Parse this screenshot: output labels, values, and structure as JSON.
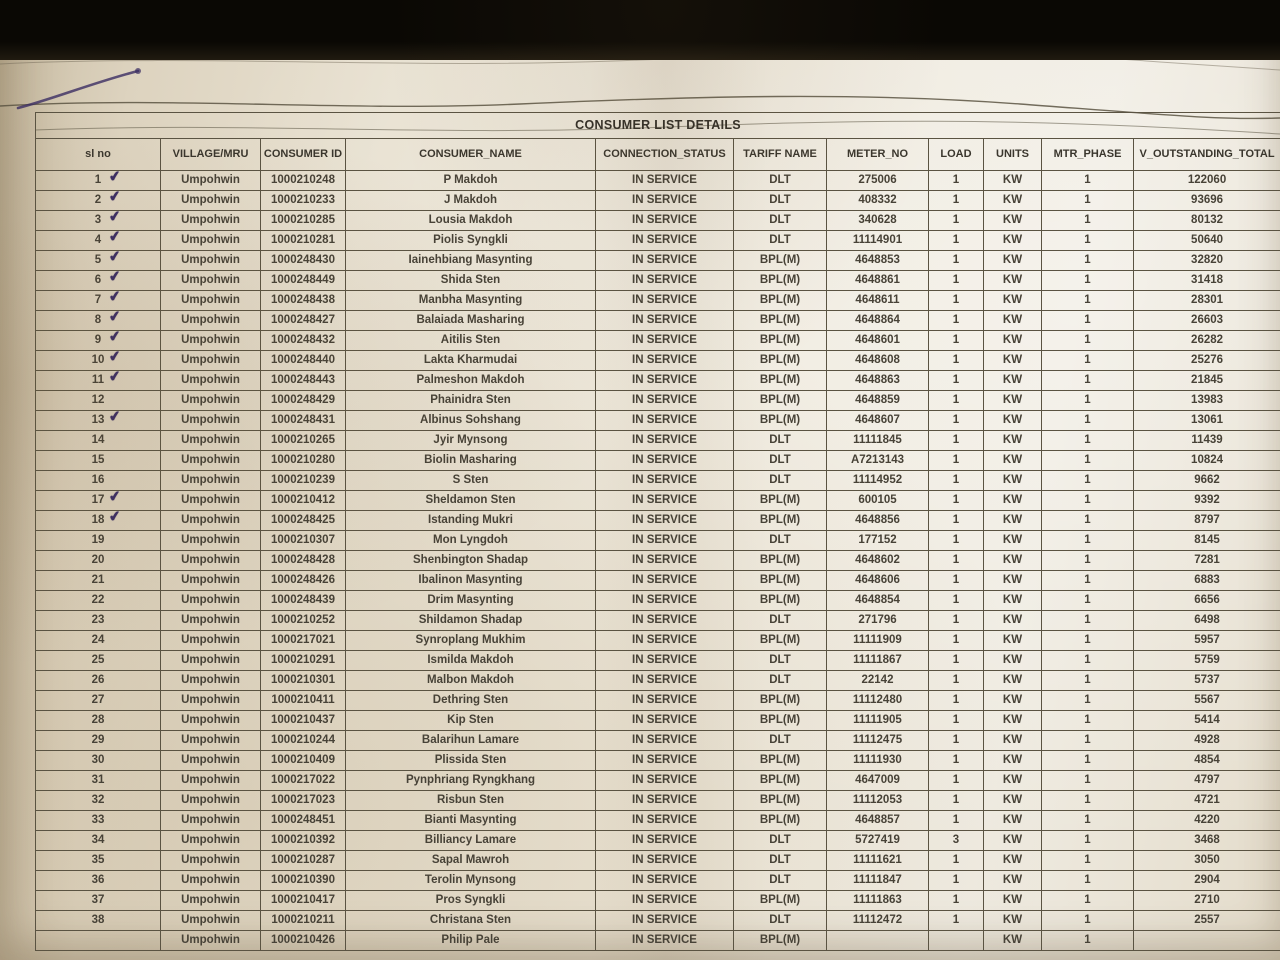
{
  "document": {
    "title": "CONSUMER LIST DETAILS"
  },
  "pen": {
    "color": "#3b2d63",
    "check_glyph": "✔"
  },
  "table": {
    "columns": [
      {
        "key": "sl",
        "label": "sl no"
      },
      {
        "key": "village",
        "label": "VILLAGE/MRU"
      },
      {
        "key": "consumer_id",
        "label": "CONSUMER ID"
      },
      {
        "key": "name",
        "label": "CONSUMER_NAME"
      },
      {
        "key": "status",
        "label": "CONNECTION_STATUS"
      },
      {
        "key": "tariff",
        "label": "TARIFF NAME"
      },
      {
        "key": "meter",
        "label": "METER_NO"
      },
      {
        "key": "load",
        "label": "LOAD"
      },
      {
        "key": "units",
        "label": "UNITS"
      },
      {
        "key": "phase",
        "label": "MTR_PHASE"
      },
      {
        "key": "outstanding",
        "label": "V_OUTSTANDING_TOTAL"
      }
    ],
    "rows": [
      {
        "sl": "1",
        "village": "Umpohwin",
        "consumer_id": "1000210248",
        "name": "P Makdoh",
        "status": "IN SERVICE",
        "tariff": "DLT",
        "meter": "275006",
        "load": "1",
        "units": "KW",
        "phase": "1",
        "outstanding": "122060",
        "checked": true
      },
      {
        "sl": "2",
        "village": "Umpohwin",
        "consumer_id": "1000210233",
        "name": "J Makdoh",
        "status": "IN SERVICE",
        "tariff": "DLT",
        "meter": "408332",
        "load": "1",
        "units": "KW",
        "phase": "1",
        "outstanding": "93696",
        "checked": true
      },
      {
        "sl": "3",
        "village": "Umpohwin",
        "consumer_id": "1000210285",
        "name": "Lousia Makdoh",
        "status": "IN SERVICE",
        "tariff": "DLT",
        "meter": "340628",
        "load": "1",
        "units": "KW",
        "phase": "1",
        "outstanding": "80132",
        "checked": true
      },
      {
        "sl": "4",
        "village": "Umpohwin",
        "consumer_id": "1000210281",
        "name": "Piolis Syngkli",
        "status": "IN SERVICE",
        "tariff": "DLT",
        "meter": "11114901",
        "load": "1",
        "units": "KW",
        "phase": "1",
        "outstanding": "50640",
        "checked": true
      },
      {
        "sl": "5",
        "village": "Umpohwin",
        "consumer_id": "1000248430",
        "name": "Iainehbiang Masynting",
        "status": "IN SERVICE",
        "tariff": "BPL(M)",
        "meter": "4648853",
        "load": "1",
        "units": "KW",
        "phase": "1",
        "outstanding": "32820",
        "checked": true
      },
      {
        "sl": "6",
        "village": "Umpohwin",
        "consumer_id": "1000248449",
        "name": "Shida Sten",
        "status": "IN SERVICE",
        "tariff": "BPL(M)",
        "meter": "4648861",
        "load": "1",
        "units": "KW",
        "phase": "1",
        "outstanding": "31418",
        "checked": true
      },
      {
        "sl": "7",
        "village": "Umpohwin",
        "consumer_id": "1000248438",
        "name": "Manbha Masynting",
        "status": "IN SERVICE",
        "tariff": "BPL(M)",
        "meter": "4648611",
        "load": "1",
        "units": "KW",
        "phase": "1",
        "outstanding": "28301",
        "checked": true
      },
      {
        "sl": "8",
        "village": "Umpohwin",
        "consumer_id": "1000248427",
        "name": "Balaiada Masharing",
        "status": "IN SERVICE",
        "tariff": "BPL(M)",
        "meter": "4648864",
        "load": "1",
        "units": "KW",
        "phase": "1",
        "outstanding": "26603",
        "checked": true
      },
      {
        "sl": "9",
        "village": "Umpohwin",
        "consumer_id": "1000248432",
        "name": "Aitilis Sten",
        "status": "IN SERVICE",
        "tariff": "BPL(M)",
        "meter": "4648601",
        "load": "1",
        "units": "KW",
        "phase": "1",
        "outstanding": "26282",
        "checked": true
      },
      {
        "sl": "10",
        "village": "Umpohwin",
        "consumer_id": "1000248440",
        "name": "Lakta Kharmudai",
        "status": "IN SERVICE",
        "tariff": "BPL(M)",
        "meter": "4648608",
        "load": "1",
        "units": "KW",
        "phase": "1",
        "outstanding": "25276",
        "checked": true
      },
      {
        "sl": "11",
        "village": "Umpohwin",
        "consumer_id": "1000248443",
        "name": "Palmeshon Makdoh",
        "status": "IN SERVICE",
        "tariff": "BPL(M)",
        "meter": "4648863",
        "load": "1",
        "units": "KW",
        "phase": "1",
        "outstanding": "21845",
        "checked": true
      },
      {
        "sl": "12",
        "village": "Umpohwin",
        "consumer_id": "1000248429",
        "name": "Phainidra Sten",
        "status": "IN SERVICE",
        "tariff": "BPL(M)",
        "meter": "4648859",
        "load": "1",
        "units": "KW",
        "phase": "1",
        "outstanding": "13983",
        "checked": false
      },
      {
        "sl": "13",
        "village": "Umpohwin",
        "consumer_id": "1000248431",
        "name": "Albinus Sohshang",
        "status": "IN SERVICE",
        "tariff": "BPL(M)",
        "meter": "4648607",
        "load": "1",
        "units": "KW",
        "phase": "1",
        "outstanding": "13061",
        "checked": true
      },
      {
        "sl": "14",
        "village": "Umpohwin",
        "consumer_id": "1000210265",
        "name": "Jyir Mynsong",
        "status": "IN SERVICE",
        "tariff": "DLT",
        "meter": "11111845",
        "load": "1",
        "units": "KW",
        "phase": "1",
        "outstanding": "11439",
        "checked": false
      },
      {
        "sl": "15",
        "village": "Umpohwin",
        "consumer_id": "1000210280",
        "name": "Biolin Masharing",
        "status": "IN SERVICE",
        "tariff": "DLT",
        "meter": "A7213143",
        "load": "1",
        "units": "KW",
        "phase": "1",
        "outstanding": "10824",
        "checked": false
      },
      {
        "sl": "16",
        "village": "Umpohwin",
        "consumer_id": "1000210239",
        "name": "S Sten",
        "status": "IN SERVICE",
        "tariff": "DLT",
        "meter": "11114952",
        "load": "1",
        "units": "KW",
        "phase": "1",
        "outstanding": "9662",
        "checked": false
      },
      {
        "sl": "17",
        "village": "Umpohwin",
        "consumer_id": "1000210412",
        "name": "Sheldamon Sten",
        "status": "IN SERVICE",
        "tariff": "BPL(M)",
        "meter": "600105",
        "load": "1",
        "units": "KW",
        "phase": "1",
        "outstanding": "9392",
        "checked": true
      },
      {
        "sl": "18",
        "village": "Umpohwin",
        "consumer_id": "1000248425",
        "name": "Istanding Mukri",
        "status": "IN SERVICE",
        "tariff": "BPL(M)",
        "meter": "4648856",
        "load": "1",
        "units": "KW",
        "phase": "1",
        "outstanding": "8797",
        "checked": true
      },
      {
        "sl": "19",
        "village": "Umpohwin",
        "consumer_id": "1000210307",
        "name": "Mon Lyngdoh",
        "status": "IN SERVICE",
        "tariff": "DLT",
        "meter": "177152",
        "load": "1",
        "units": "KW",
        "phase": "1",
        "outstanding": "8145",
        "checked": false
      },
      {
        "sl": "20",
        "village": "Umpohwin",
        "consumer_id": "1000248428",
        "name": "Shenbington Shadap",
        "status": "IN SERVICE",
        "tariff": "BPL(M)",
        "meter": "4648602",
        "load": "1",
        "units": "KW",
        "phase": "1",
        "outstanding": "7281",
        "checked": false
      },
      {
        "sl": "21",
        "village": "Umpohwin",
        "consumer_id": "1000248426",
        "name": "Ibalinon Masynting",
        "status": "IN SERVICE",
        "tariff": "BPL(M)",
        "meter": "4648606",
        "load": "1",
        "units": "KW",
        "phase": "1",
        "outstanding": "6883",
        "checked": false
      },
      {
        "sl": "22",
        "village": "Umpohwin",
        "consumer_id": "1000248439",
        "name": "Drim Masynting",
        "status": "IN SERVICE",
        "tariff": "BPL(M)",
        "meter": "4648854",
        "load": "1",
        "units": "KW",
        "phase": "1",
        "outstanding": "6656",
        "checked": false
      },
      {
        "sl": "23",
        "village": "Umpohwin",
        "consumer_id": "1000210252",
        "name": "Shildamon Shadap",
        "status": "IN SERVICE",
        "tariff": "DLT",
        "meter": "271796",
        "load": "1",
        "units": "KW",
        "phase": "1",
        "outstanding": "6498",
        "checked": false
      },
      {
        "sl": "24",
        "village": "Umpohwin",
        "consumer_id": "1000217021",
        "name": "Synroplang Mukhim",
        "status": "IN SERVICE",
        "tariff": "BPL(M)",
        "meter": "11111909",
        "load": "1",
        "units": "KW",
        "phase": "1",
        "outstanding": "5957",
        "checked": false
      },
      {
        "sl": "25",
        "village": "Umpohwin",
        "consumer_id": "1000210291",
        "name": "Ismilda Makdoh",
        "status": "IN SERVICE",
        "tariff": "DLT",
        "meter": "11111867",
        "load": "1",
        "units": "KW",
        "phase": "1",
        "outstanding": "5759",
        "checked": false
      },
      {
        "sl": "26",
        "village": "Umpohwin",
        "consumer_id": "1000210301",
        "name": "Malbon Makdoh",
        "status": "IN SERVICE",
        "tariff": "DLT",
        "meter": "22142",
        "load": "1",
        "units": "KW",
        "phase": "1",
        "outstanding": "5737",
        "checked": false
      },
      {
        "sl": "27",
        "village": "Umpohwin",
        "consumer_id": "1000210411",
        "name": "Dethring Sten",
        "status": "IN SERVICE",
        "tariff": "BPL(M)",
        "meter": "11112480",
        "load": "1",
        "units": "KW",
        "phase": "1",
        "outstanding": "5567",
        "checked": false
      },
      {
        "sl": "28",
        "village": "Umpohwin",
        "consumer_id": "1000210437",
        "name": "Kip Sten",
        "status": "IN SERVICE",
        "tariff": "BPL(M)",
        "meter": "11111905",
        "load": "1",
        "units": "KW",
        "phase": "1",
        "outstanding": "5414",
        "checked": false
      },
      {
        "sl": "29",
        "village": "Umpohwin",
        "consumer_id": "1000210244",
        "name": "Balarihun Lamare",
        "status": "IN SERVICE",
        "tariff": "DLT",
        "meter": "11112475",
        "load": "1",
        "units": "KW",
        "phase": "1",
        "outstanding": "4928",
        "checked": false
      },
      {
        "sl": "30",
        "village": "Umpohwin",
        "consumer_id": "1000210409",
        "name": "Plissida Sten",
        "status": "IN SERVICE",
        "tariff": "BPL(M)",
        "meter": "11111930",
        "load": "1",
        "units": "KW",
        "phase": "1",
        "outstanding": "4854",
        "checked": false
      },
      {
        "sl": "31",
        "village": "Umpohwin",
        "consumer_id": "1000217022",
        "name": "Pynphriang Ryngkhang",
        "status": "IN SERVICE",
        "tariff": "BPL(M)",
        "meter": "4647009",
        "load": "1",
        "units": "KW",
        "phase": "1",
        "outstanding": "4797",
        "checked": false
      },
      {
        "sl": "32",
        "village": "Umpohwin",
        "consumer_id": "1000217023",
        "name": "Risbun Sten",
        "status": "IN SERVICE",
        "tariff": "BPL(M)",
        "meter": "11112053",
        "load": "1",
        "units": "KW",
        "phase": "1",
        "outstanding": "4721",
        "checked": false
      },
      {
        "sl": "33",
        "village": "Umpohwin",
        "consumer_id": "1000248451",
        "name": "Bianti Masynting",
        "status": "IN SERVICE",
        "tariff": "BPL(M)",
        "meter": "4648857",
        "load": "1",
        "units": "KW",
        "phase": "1",
        "outstanding": "4220",
        "checked": false
      },
      {
        "sl": "34",
        "village": "Umpohwin",
        "consumer_id": "1000210392",
        "name": "Billiancy Lamare",
        "status": "IN SERVICE",
        "tariff": "DLT",
        "meter": "5727419",
        "load": "3",
        "units": "KW",
        "phase": "1",
        "outstanding": "3468",
        "checked": false
      },
      {
        "sl": "35",
        "village": "Umpohwin",
        "consumer_id": "1000210287",
        "name": "Sapal Mawroh",
        "status": "IN SERVICE",
        "tariff": "DLT",
        "meter": "11111621",
        "load": "1",
        "units": "KW",
        "phase": "1",
        "outstanding": "3050",
        "checked": false
      },
      {
        "sl": "36",
        "village": "Umpohwin",
        "consumer_id": "1000210390",
        "name": "Terolin Mynsong",
        "status": "IN SERVICE",
        "tariff": "DLT",
        "meter": "11111847",
        "load": "1",
        "units": "KW",
        "phase": "1",
        "outstanding": "2904",
        "checked": false
      },
      {
        "sl": "37",
        "village": "Umpohwin",
        "consumer_id": "1000210417",
        "name": "Pros Syngkli",
        "status": "IN SERVICE",
        "tariff": "BPL(M)",
        "meter": "11111863",
        "load": "1",
        "units": "KW",
        "phase": "1",
        "outstanding": "2710",
        "checked": false
      },
      {
        "sl": "38",
        "village": "Umpohwin",
        "consumer_id": "1000210211",
        "name": "Christana Sten",
        "status": "IN SERVICE",
        "tariff": "DLT",
        "meter": "11112472",
        "load": "1",
        "units": "KW",
        "phase": "1",
        "outstanding": "2557",
        "checked": false
      },
      {
        "sl": "",
        "village": "Umpohwin",
        "consumer_id": "1000210426",
        "name": "Philip Pale",
        "status": "IN SERVICE",
        "tariff": "BPL(M)",
        "meter": "",
        "load": "",
        "units": "KW",
        "phase": "1",
        "outstanding": "",
        "checked": false
      }
    ]
  }
}
